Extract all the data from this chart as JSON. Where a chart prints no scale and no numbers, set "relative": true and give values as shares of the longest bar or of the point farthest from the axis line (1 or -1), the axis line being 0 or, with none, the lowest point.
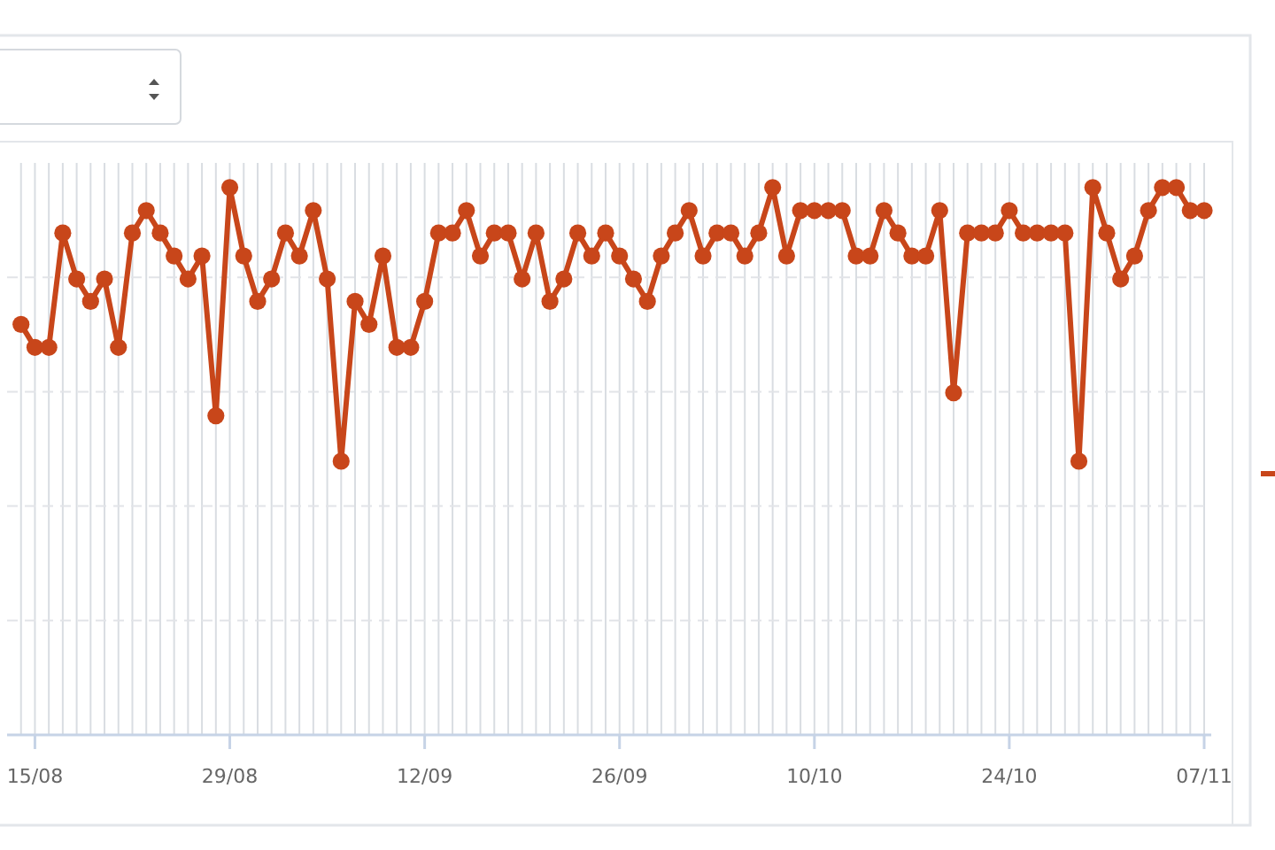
{
  "chart_data": {
    "type": "line",
    "relative": true,
    "grid": true,
    "marker": "circle",
    "line_style": "solid",
    "x": [
      "--08-14",
      "--08-15",
      "--08-16",
      "--08-17",
      "--08-18",
      "--08-19",
      "--08-20",
      "--08-21",
      "--08-22",
      "--08-23",
      "--08-24",
      "--08-25",
      "--08-26",
      "--08-27",
      "--08-28",
      "--08-29",
      "--08-30",
      "--08-31",
      "--09-01",
      "--09-02",
      "--09-03",
      "--09-04",
      "--09-05",
      "--09-06",
      "--09-07",
      "--09-08",
      "--09-09",
      "--09-10",
      "--09-11",
      "--09-12",
      "--09-13",
      "--09-14",
      "--09-15",
      "--09-16",
      "--09-17",
      "--09-18",
      "--09-19",
      "--09-20",
      "--09-21",
      "--09-22",
      "--09-23",
      "--09-24",
      "--09-25",
      "--09-26",
      "--09-27",
      "--09-28",
      "--09-29",
      "--09-30",
      "--10-01",
      "--10-02",
      "--10-03",
      "--10-04",
      "--10-05",
      "--10-06",
      "--10-07",
      "--10-08",
      "--10-09",
      "--10-10",
      "--10-11",
      "--10-12",
      "--10-13",
      "--10-14",
      "--10-15",
      "--10-16",
      "--10-17",
      "--10-18",
      "--10-19",
      "--10-20",
      "--10-21",
      "--10-22",
      "--10-23",
      "--10-24",
      "--10-25",
      "--10-26",
      "--10-27",
      "--10-28",
      "--10-29",
      "--10-30",
      "--10-31",
      "--11-01",
      "--11-02",
      "--11-03",
      "--11-04",
      "--11-05",
      "--11-06",
      "--11-07"
    ],
    "xlim": [
      "--08-13",
      "--11-07"
    ],
    "xticks": [
      {
        "value": "--08-15",
        "label": "15/08"
      },
      {
        "value": "--08-29",
        "label": "29/08"
      },
      {
        "value": "--09-12",
        "label": "12/09"
      },
      {
        "value": "--09-26",
        "label": "26/09"
      },
      {
        "value": "--10-10",
        "label": "10/10"
      },
      {
        "value": "--10-24",
        "label": "24/10"
      },
      {
        "value": "--11-07",
        "label": "07/11"
      }
    ],
    "series": [
      {
        "color": "#c8461a",
        "values": [
          0.75,
          0.708,
          0.708,
          0.917,
          0.833,
          0.792,
          0.833,
          0.708,
          0.917,
          0.958,
          0.917,
          0.875,
          0.833,
          0.875,
          0.583,
          1,
          0.875,
          0.792,
          0.833,
          0.917,
          0.875,
          0.958,
          0.833,
          0.5,
          0.792,
          0.75,
          0.875,
          0.708,
          0.708,
          0.792,
          0.917,
          0.917,
          0.958,
          0.875,
          0.917,
          0.917,
          0.833,
          0.917,
          0.792,
          0.833,
          0.917,
          0.875,
          0.917,
          0.875,
          0.833,
          0.792,
          0.875,
          0.917,
          0.958,
          0.875,
          0.917,
          0.917,
          0.875,
          0.917,
          1,
          0.875,
          0.958,
          0.958,
          0.958,
          0.958,
          0.875,
          0.875,
          0.958,
          0.917,
          0.875,
          0.875,
          0.958,
          0.625,
          0.917,
          0.917,
          0.917,
          0.958,
          0.917,
          0.917,
          0.917,
          0.917,
          0.5,
          1,
          0.917,
          0.833,
          0.875,
          0.958,
          1,
          1,
          0.958,
          0.958
        ]
      }
    ]
  }
}
